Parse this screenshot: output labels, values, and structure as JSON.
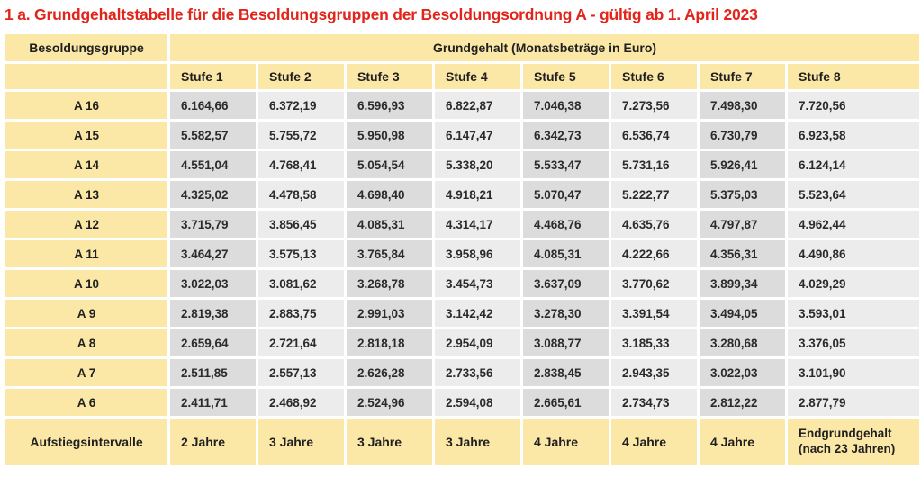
{
  "title": "1 a. Grundgehaltstabelle für die Besoldungsgruppen der Besoldungsordnung A - gültig ab 1. April 2023",
  "colors": {
    "title_red": "#e2251b",
    "cell_yellow": "#fbe7a6",
    "cell_gray_dark": "#dcdcdc",
    "cell_gray_light": "#ececec"
  },
  "table": {
    "col1_header": "Besoldungsgruppe",
    "group_header": "Grundgehalt (Monatsbeträge in Euro)",
    "stufe_headers": [
      "Stufe 1",
      "Stufe 2",
      "Stufe 3",
      "Stufe 4",
      "Stufe 5",
      "Stufe 6",
      "Stufe 7",
      "Stufe 8"
    ],
    "rows": [
      {
        "group": "A 16",
        "values": [
          "6.164,66",
          "6.372,19",
          "6.596,93",
          "6.822,87",
          "7.046,38",
          "7.273,56",
          "7.498,30",
          "7.720,56"
        ]
      },
      {
        "group": "A 15",
        "values": [
          "5.582,57",
          "5.755,72",
          "5.950,98",
          "6.147,47",
          "6.342,73",
          "6.536,74",
          "6.730,79",
          "6.923,58"
        ]
      },
      {
        "group": "A 14",
        "values": [
          "4.551,04",
          "4.768,41",
          "5.054,54",
          "5.338,20",
          "5.533,47",
          "5.731,16",
          "5.926,41",
          "6.124,14"
        ]
      },
      {
        "group": "A 13",
        "values": [
          "4.325,02",
          "4.478,58",
          "4.698,40",
          "4.918,21",
          "5.070,47",
          "5.222,77",
          "5.375,03",
          "5.523,64"
        ]
      },
      {
        "group": "A 12",
        "values": [
          "3.715,79",
          "3.856,45",
          "4.085,31",
          "4.314,17",
          "4.468,76",
          "4.635,76",
          "4.797,87",
          "4.962,44"
        ]
      },
      {
        "group": "A 11",
        "values": [
          "3.464,27",
          "3.575,13",
          "3.765,84",
          "3.958,96",
          "4.085,31",
          "4.222,66",
          "4.356,31",
          "4.490,86"
        ]
      },
      {
        "group": "A 10",
        "values": [
          "3.022,03",
          "3.081,62",
          "3.268,78",
          "3.454,73",
          "3.637,09",
          "3.770,62",
          "3.899,34",
          "4.029,29"
        ]
      },
      {
        "group": "A 9",
        "values": [
          "2.819,38",
          "2.883,75",
          "2.991,03",
          "3.142,42",
          "3.278,30",
          "3.391,54",
          "3.494,05",
          "3.593,01"
        ]
      },
      {
        "group": "A 8",
        "values": [
          "2.659,64",
          "2.721,64",
          "2.818,18",
          "2.954,09",
          "3.088,77",
          "3.185,33",
          "3.280,68",
          "3.376,05"
        ]
      },
      {
        "group": "A 7",
        "values": [
          "2.511,85",
          "2.557,13",
          "2.626,28",
          "2.733,56",
          "2.838,45",
          "2.943,35",
          "3.022,03",
          "3.101,90"
        ]
      },
      {
        "group": "A 6",
        "values": [
          "2.411,71",
          "2.468,92",
          "2.524,96",
          "2.594,08",
          "2.665,61",
          "2.734,73",
          "2.812,22",
          "2.877,79"
        ]
      }
    ],
    "footer": {
      "label": "Aufstiegsintervalle",
      "intervals": [
        "2 Jahre",
        "3 Jahre",
        "3 Jahre",
        "3 Jahre",
        "4 Jahre",
        "4 Jahre",
        "4 Jahre"
      ],
      "end_label": "Endgrundgehalt (nach 23 Jahren)"
    }
  }
}
